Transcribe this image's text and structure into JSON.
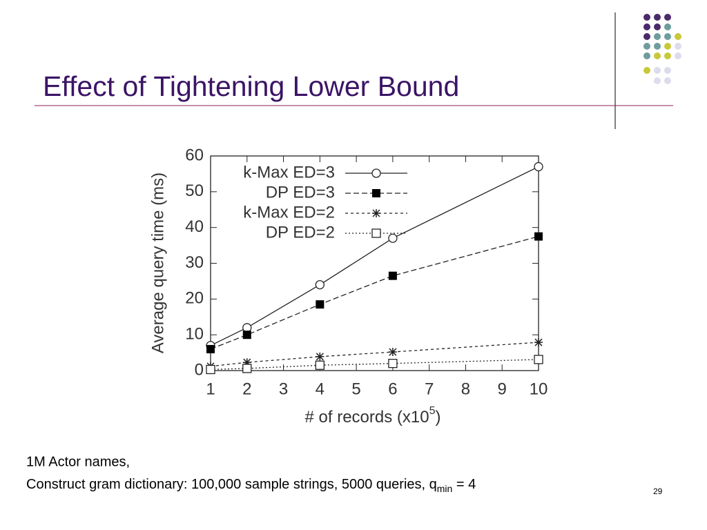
{
  "slide": {
    "title": "Effect of Tightening Lower Bound",
    "note_line1": "1M Actor names,",
    "note_line2": "Construct gram dictionary: 100,000 sample strings, 5000 queries, q",
    "note_subscript": "min",
    "note_line2_end": " = 4",
    "page_number": "29"
  },
  "chart_data": {
    "type": "line",
    "x_label": "# of records (x10",
    "x_label_exponent": "5",
    "x_label_end": ")",
    "y_label": "Average query time (ms)",
    "x": [
      1,
      2,
      4,
      6,
      10
    ],
    "xlim": [
      1,
      10
    ],
    "xticks": [
      1,
      2,
      3,
      4,
      5,
      6,
      7,
      8,
      9,
      10
    ],
    "ylim": [
      0,
      60
    ],
    "yticks": [
      0,
      10,
      20,
      30,
      40,
      50,
      60
    ],
    "legend": "top-left",
    "series": [
      {
        "name": "k-Max ED=3",
        "color": "#222222",
        "dash": "solid",
        "marker": "circle",
        "values": [
          7,
          12,
          24,
          37,
          57
        ]
      },
      {
        "name": "DP ED=3",
        "color": "#222222",
        "dash": "dashed",
        "marker": "square-filled",
        "values": [
          6,
          10,
          18.5,
          26.5,
          37.5
        ]
      },
      {
        "name": "k-Max ED=2",
        "color": "#222222",
        "dash": "short-dashed",
        "marker": "star",
        "values": [
          1.2,
          2.3,
          3.9,
          5.2,
          7.9
        ]
      },
      {
        "name": "DP ED=2",
        "color": "#222222",
        "dash": "dotted",
        "marker": "square-open",
        "values": [
          0.3,
          0.6,
          1.5,
          2,
          3.1
        ]
      }
    ]
  }
}
